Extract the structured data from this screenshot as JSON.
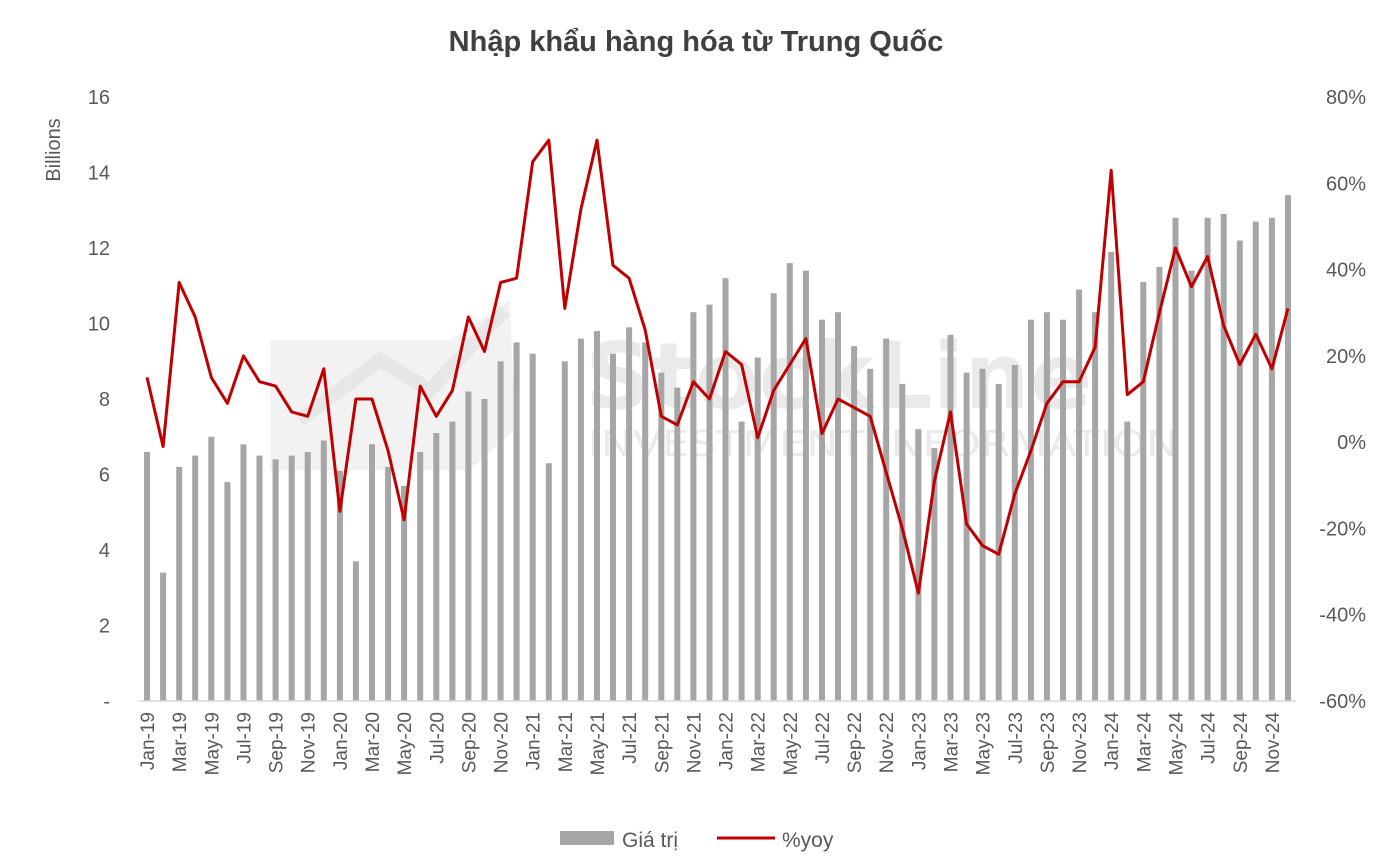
{
  "chart_data": {
    "type": "bar+line",
    "title": "Nhập khẩu hàng hóa từ Trung Quốc",
    "ylabel": "Billions",
    "ylim": [
      0,
      16
    ],
    "y_ticks": [
      "-",
      "2",
      "4",
      "6",
      "8",
      "10",
      "12",
      "14",
      "16"
    ],
    "y2lim": [
      -60,
      80
    ],
    "y2_ticks": [
      "-60%",
      "-40%",
      "-20%",
      "0%",
      "20%",
      "40%",
      "60%",
      "80%"
    ],
    "categories": [
      "Jan-19",
      "Feb-19",
      "Mar-19",
      "Apr-19",
      "May-19",
      "Jun-19",
      "Jul-19",
      "Aug-19",
      "Sep-19",
      "Oct-19",
      "Nov-19",
      "Dec-19",
      "Jan-20",
      "Feb-20",
      "Mar-20",
      "Apr-20",
      "May-20",
      "Jun-20",
      "Jul-20",
      "Aug-20",
      "Sep-20",
      "Oct-20",
      "Nov-20",
      "Dec-20",
      "Jan-21",
      "Feb-21",
      "Mar-21",
      "Apr-21",
      "May-21",
      "Jun-21",
      "Jul-21",
      "Aug-21",
      "Sep-21",
      "Oct-21",
      "Nov-21",
      "Dec-21",
      "Jan-22",
      "Feb-22",
      "Mar-22",
      "Apr-22",
      "May-22",
      "Jun-22",
      "Jul-22",
      "Aug-22",
      "Sep-22",
      "Oct-22",
      "Nov-22",
      "Dec-22",
      "Jan-23",
      "Feb-23",
      "Mar-23",
      "Apr-23",
      "May-23",
      "Jun-23",
      "Jul-23",
      "Aug-23",
      "Sep-23",
      "Oct-23",
      "Nov-23",
      "Dec-23",
      "Jan-24",
      "Feb-24",
      "Mar-24",
      "Apr-24",
      "May-24",
      "Jun-24",
      "Jul-24",
      "Aug-24",
      "Sep-24",
      "Oct-24",
      "Nov-24",
      "Dec-24"
    ],
    "x_tick_labels": [
      "Jan-19",
      "Mar-19",
      "May-19",
      "Jul-19",
      "Sep-19",
      "Nov-19",
      "Jan-20",
      "Mar-20",
      "May-20",
      "Jul-20",
      "Sep-20",
      "Nov-20",
      "Jan-21",
      "Mar-21",
      "May-21",
      "Jul-21",
      "Sep-21",
      "Nov-21",
      "Jan-22",
      "Mar-22",
      "May-22",
      "Jul-22",
      "Sep-22",
      "Nov-22",
      "Jan-23",
      "Mar-23",
      "May-23",
      "Jul-23",
      "Sep-23",
      "Nov-23",
      "Jan-24",
      "Mar-24",
      "May-24",
      "Jul-24",
      "Sep-24",
      "Nov-24"
    ],
    "series": [
      {
        "name": "Giá trị",
        "type": "bar",
        "axis": "left",
        "color": "#a6a6a6",
        "values": [
          6.6,
          3.4,
          6.2,
          6.5,
          7.0,
          5.8,
          6.8,
          6.5,
          6.4,
          6.5,
          6.6,
          6.9,
          6.1,
          3.7,
          6.8,
          6.2,
          5.7,
          6.6,
          7.1,
          7.4,
          8.2,
          8.0,
          9.0,
          9.5,
          9.2,
          6.3,
          9.0,
          9.6,
          9.8,
          9.2,
          9.9,
          9.5,
          8.7,
          8.3,
          10.3,
          10.5,
          11.2,
          7.4,
          9.1,
          10.8,
          11.6,
          11.4,
          10.1,
          10.3,
          9.4,
          8.8,
          9.6,
          8.4,
          7.2,
          6.7,
          9.7,
          8.7,
          8.8,
          8.4,
          8.9,
          10.1,
          10.3,
          10.1,
          10.9,
          10.3,
          11.9,
          7.4,
          11.1,
          11.5,
          12.8,
          11.4,
          12.8,
          12.9,
          12.2,
          12.7,
          12.8,
          13.4
        ]
      },
      {
        "name": "%yoy",
        "type": "line",
        "axis": "right",
        "color": "#c00000",
        "values": [
          15,
          -1,
          37,
          29,
          15,
          9,
          20,
          14,
          13,
          7,
          6,
          17,
          -16,
          10,
          10,
          -2,
          -18,
          13,
          6,
          12,
          29,
          21,
          37,
          38,
          65,
          70,
          31,
          54,
          70,
          41,
          38,
          26,
          6,
          4,
          14,
          10,
          21,
          18,
          1,
          12,
          18,
          24,
          2,
          10,
          8,
          6,
          -7,
          -20,
          -35,
          -9,
          7,
          -19,
          -24,
          -26,
          -12,
          -2,
          9,
          14,
          14,
          22,
          63,
          11,
          14,
          30,
          45,
          36,
          43,
          27,
          18,
          25,
          17,
          31
        ]
      }
    ],
    "grid": false,
    "legend": "bottom",
    "legend_entries": [
      "Giá trị",
      "%yoy"
    ]
  },
  "watermark": {
    "main": "StockLine",
    "sub": "INVESTMENT INFORMATION"
  }
}
